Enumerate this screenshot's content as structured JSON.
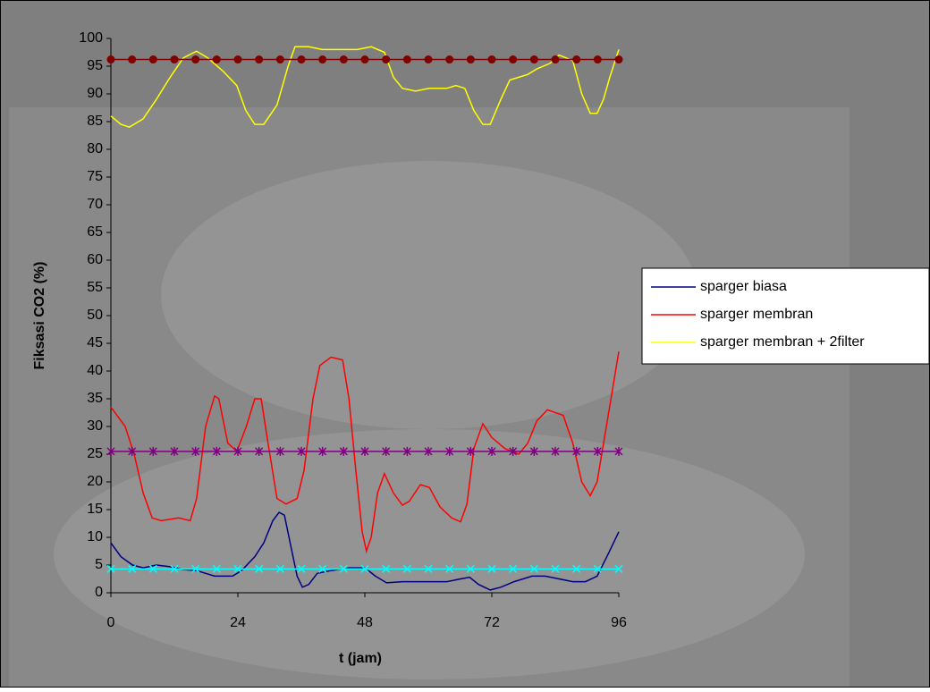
{
  "chart_data": {
    "type": "line",
    "xlabel": "t (jam)",
    "ylabel": "Fiksasi CO2 (%)",
    "xlim": [
      0,
      96
    ],
    "xticks": [
      0,
      24,
      48,
      72,
      96
    ],
    "ylim": [
      0,
      100
    ],
    "yticks": [
      0,
      5,
      10,
      15,
      20,
      25,
      30,
      35,
      40,
      45,
      50,
      55,
      60,
      65,
      70,
      75,
      80,
      85,
      90,
      95,
      100
    ],
    "legend": "right",
    "series": [
      {
        "name": "sparger biasa",
        "color": "#000080",
        "x": [
          0,
          1.9,
          4.1,
          6.1,
          8.6,
          11.2,
          13.7,
          16.2,
          19.6,
          23,
          24.7,
          27.2,
          28.9,
          30.6,
          31.8,
          32.8,
          34.1,
          35.2,
          36.2,
          37.4,
          39,
          41.6,
          45,
          48,
          50,
          52.1,
          55.1,
          60.2,
          63.5,
          66.1,
          67.8,
          69.5,
          71.7,
          73.7,
          76.2,
          79.6,
          82.1,
          84.7,
          87.3,
          89.7,
          91.9,
          94,
          96
        ],
        "values": [
          9,
          6.5,
          5,
          4.5,
          5,
          4.7,
          4.2,
          4,
          3,
          3,
          4,
          6.5,
          9,
          13,
          14.5,
          14,
          8,
          3,
          1,
          1.5,
          3.5,
          4,
          4.5,
          4.5,
          3,
          1.8,
          2,
          2,
          2,
          2.5,
          2.8,
          1.5,
          0.5,
          1,
          2,
          3,
          3,
          2.5,
          2,
          2,
          3,
          7,
          11
        ]
      },
      {
        "name": "sparger membran",
        "color": "#ff0000",
        "x": [
          0,
          2.7,
          4.4,
          6.1,
          7.8,
          9.5,
          12.8,
          15,
          16.2,
          17.9,
          19.6,
          20.4,
          22.1,
          23.8,
          25.6,
          27.2,
          28.4,
          29.7,
          31.4,
          33.1,
          35.2,
          36.5,
          38.2,
          39.5,
          41.6,
          43.8,
          45,
          46.3,
          47.5,
          48.3,
          49.2,
          50.4,
          51.7,
          53.4,
          55.1,
          56.4,
          58.5,
          60.2,
          62.2,
          64.4,
          66.1,
          67.3,
          68.6,
          70.3,
          72,
          74.5,
          77.1,
          78.8,
          80.5,
          82.5,
          85.5,
          87.3,
          89,
          90.6,
          91.9,
          94,
          96
        ],
        "values": [
          33.5,
          30,
          25,
          18,
          13.5,
          13,
          13.5,
          13,
          17,
          30,
          35.5,
          35,
          27,
          25.5,
          30,
          35,
          35,
          27,
          17,
          16,
          17,
          22,
          35,
          41,
          42.5,
          42,
          35,
          22,
          11,
          7.5,
          10,
          18,
          21.5,
          18,
          15.8,
          16.5,
          19.5,
          19,
          15.5,
          13.5,
          12.8,
          16,
          26,
          30.5,
          28,
          26,
          25,
          27,
          31,
          33,
          32,
          27,
          20,
          17.5,
          20,
          32,
          43.5
        ]
      },
      {
        "name": "sparger membran + 2filter",
        "color": "#ffff00",
        "x": [
          0,
          1.9,
          3.5,
          6.1,
          8.6,
          11.2,
          13.7,
          16.2,
          18.3,
          21.3,
          23.8,
          25.5,
          27.2,
          28.9,
          31.4,
          33.5,
          34.8,
          37.4,
          39.9,
          43.3,
          46.6,
          49.2,
          51.7,
          53.4,
          55.1,
          57.6,
          60.2,
          63.5,
          65.2,
          66.9,
          68.6,
          70.3,
          71.7,
          73.7,
          75.4,
          77.1,
          78.8,
          80.5,
          83,
          84.7,
          87.3,
          89,
          90.6,
          91.9,
          93.1,
          94.3,
          96
        ],
        "values": [
          86,
          84.5,
          84,
          85.5,
          89,
          93,
          96.5,
          97.7,
          96.5,
          94,
          91.5,
          87,
          84.5,
          84.5,
          88,
          95,
          98.5,
          98.5,
          98,
          98,
          98,
          98.5,
          97.5,
          93,
          91,
          90.5,
          91,
          91,
          91.5,
          91,
          87,
          84.5,
          84.5,
          89,
          92.5,
          93,
          93.5,
          94.5,
          95.5,
          97,
          96,
          90,
          86.5,
          86.5,
          89,
          93,
          98
        ]
      },
      {
        "color": "#800000",
        "marker": "circle",
        "x": [
          0,
          4,
          8,
          12,
          16,
          20,
          24,
          28,
          32,
          36,
          40,
          44,
          48,
          52,
          56,
          60,
          64,
          68,
          72,
          76,
          80,
          84,
          88,
          92,
          96
        ],
        "values": [
          96.2,
          96.2,
          96.2,
          96.2,
          96.2,
          96.2,
          96.2,
          96.2,
          96.2,
          96.2,
          96.2,
          96.2,
          96.2,
          96.2,
          96.2,
          96.2,
          96.2,
          96.2,
          96.2,
          96.2,
          96.2,
          96.2,
          96.2,
          96.2,
          96.2
        ]
      },
      {
        "color": "#800080",
        "marker": "asterisk",
        "x": [
          0,
          4,
          8,
          12,
          16,
          20,
          24,
          28,
          32,
          36,
          40,
          44,
          48,
          52,
          56,
          60,
          64,
          68,
          72,
          76,
          80,
          84,
          88,
          92,
          96
        ],
        "values": [
          25.5,
          25.5,
          25.5,
          25.5,
          25.5,
          25.5,
          25.5,
          25.5,
          25.5,
          25.5,
          25.5,
          25.5,
          25.5,
          25.5,
          25.5,
          25.5,
          25.5,
          25.5,
          25.5,
          25.5,
          25.5,
          25.5,
          25.5,
          25.5,
          25.5
        ]
      },
      {
        "color": "#00ffff",
        "marker": "cross",
        "x": [
          0,
          4,
          8,
          12,
          16,
          20,
          24,
          28,
          32,
          36,
          40,
          44,
          48,
          52,
          56,
          60,
          64,
          68,
          72,
          76,
          80,
          84,
          88,
          92,
          96
        ],
        "values": [
          4.3,
          4.3,
          4.3,
          4.3,
          4.3,
          4.3,
          4.3,
          4.3,
          4.3,
          4.3,
          4.3,
          4.3,
          4.3,
          4.3,
          4.3,
          4.3,
          4.3,
          4.3,
          4.3,
          4.3,
          4.3,
          4.3,
          4.3,
          4.3,
          4.3
        ]
      }
    ]
  }
}
